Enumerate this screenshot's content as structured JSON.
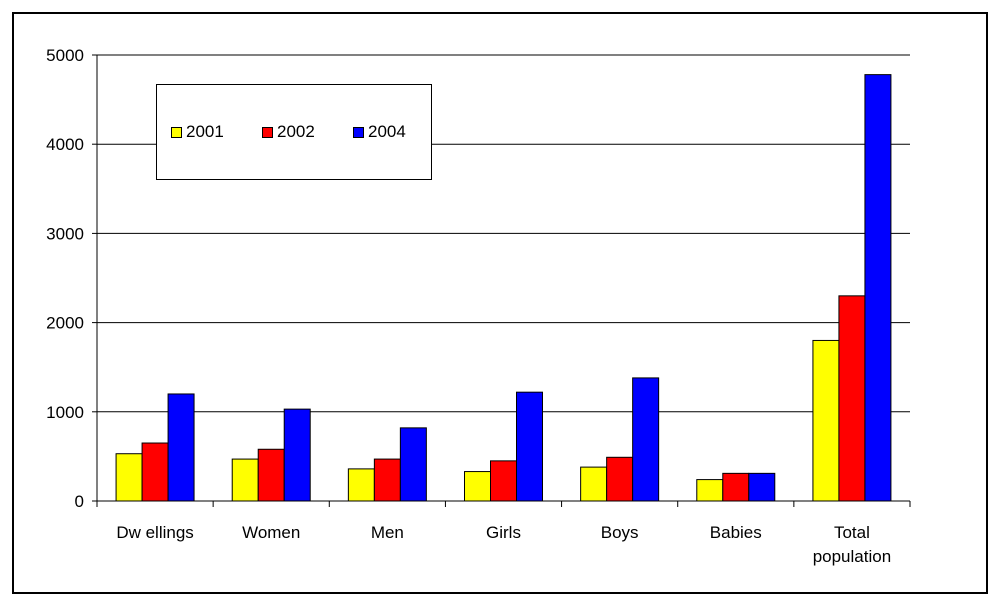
{
  "chart_data": {
    "type": "bar",
    "categories": [
      "Dw ellings",
      "Women",
      "Men",
      "Girls",
      "Boys",
      "Babies",
      "Total population"
    ],
    "category_lines": [
      [
        "Dw ellings"
      ],
      [
        "Women"
      ],
      [
        "Men"
      ],
      [
        "Girls"
      ],
      [
        "Boys"
      ],
      [
        "Babies"
      ],
      [
        "Total",
        "population"
      ]
    ],
    "series": [
      {
        "name": "2001",
        "color": "#ffff00",
        "values": [
          530,
          470,
          360,
          330,
          380,
          240,
          1800
        ]
      },
      {
        "name": "2002",
        "color": "#ff0000",
        "values": [
          650,
          580,
          470,
          450,
          490,
          310,
          2300
        ]
      },
      {
        "name": "2004",
        "color": "#0000ff",
        "values": [
          1200,
          1030,
          820,
          1220,
          1380,
          310,
          4780
        ]
      }
    ],
    "ylim": [
      0,
      5000
    ],
    "yticks": [
      0,
      1000,
      2000,
      3000,
      4000,
      5000
    ],
    "ytick_labels": [
      "0",
      "1000",
      "2000",
      "3000",
      "4000",
      "5000"
    ],
    "grid": true,
    "legend_position": "top-left",
    "title": "",
    "xlabel": "",
    "ylabel": ""
  }
}
